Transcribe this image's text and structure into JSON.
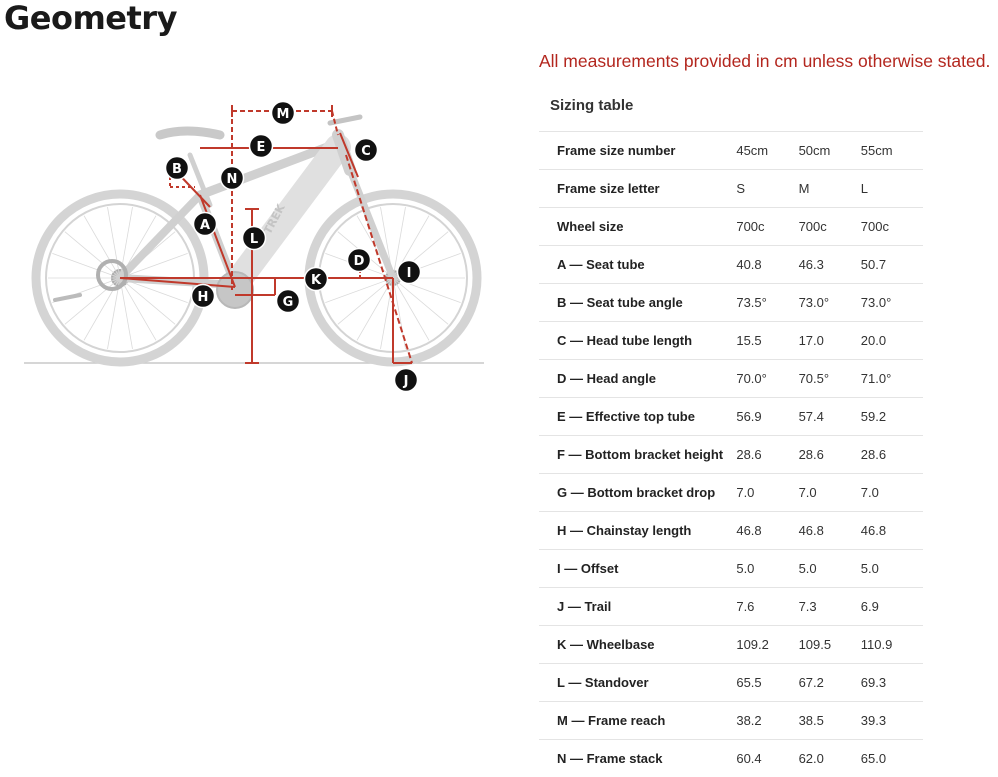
{
  "title": "Geometry",
  "note": "All measurements provided in cm unless otherwise stated.",
  "table_heading": "Sizing table",
  "diagram_labels": [
    "M",
    "E",
    "C",
    "B",
    "N",
    "A",
    "L",
    "D",
    "I",
    "K",
    "H",
    "G",
    "J"
  ],
  "diagram_brand": "TREK",
  "rows": [
    {
      "label": "Frame size number",
      "values": [
        "45cm",
        "50cm",
        "55cm"
      ]
    },
    {
      "label": "Frame size letter",
      "values": [
        "S",
        "M",
        "L"
      ]
    },
    {
      "label": "Wheel size",
      "values": [
        "700c",
        "700c",
        "700c"
      ]
    },
    {
      "label": "A — Seat tube",
      "values": [
        "40.8",
        "46.3",
        "50.7"
      ]
    },
    {
      "label": "B — Seat tube angle",
      "values": [
        "73.5°",
        "73.0°",
        "73.0°"
      ]
    },
    {
      "label": "C — Head tube length",
      "values": [
        "15.5",
        "17.0",
        "20.0"
      ]
    },
    {
      "label": "D — Head angle",
      "values": [
        "70.0°",
        "70.5°",
        "71.0°"
      ]
    },
    {
      "label": "E — Effective top tube",
      "values": [
        "56.9",
        "57.4",
        "59.2"
      ]
    },
    {
      "label": "F — Bottom bracket height",
      "values": [
        "28.6",
        "28.6",
        "28.6"
      ]
    },
    {
      "label": "G — Bottom bracket drop",
      "values": [
        "7.0",
        "7.0",
        "7.0"
      ]
    },
    {
      "label": "H — Chainstay length",
      "values": [
        "46.8",
        "46.8",
        "46.8"
      ]
    },
    {
      "label": "I — Offset",
      "values": [
        "5.0",
        "5.0",
        "5.0"
      ]
    },
    {
      "label": "J — Trail",
      "values": [
        "7.6",
        "7.3",
        "6.9"
      ]
    },
    {
      "label": "K — Wheelbase",
      "values": [
        "109.2",
        "109.5",
        "110.9"
      ]
    },
    {
      "label": "L — Standover",
      "values": [
        "65.5",
        "67.2",
        "69.3"
      ]
    },
    {
      "label": "M — Frame reach",
      "values": [
        "38.2",
        "38.5",
        "39.3"
      ]
    },
    {
      "label": "N — Frame stack",
      "values": [
        "60.4",
        "62.0",
        "65.0"
      ]
    }
  ]
}
